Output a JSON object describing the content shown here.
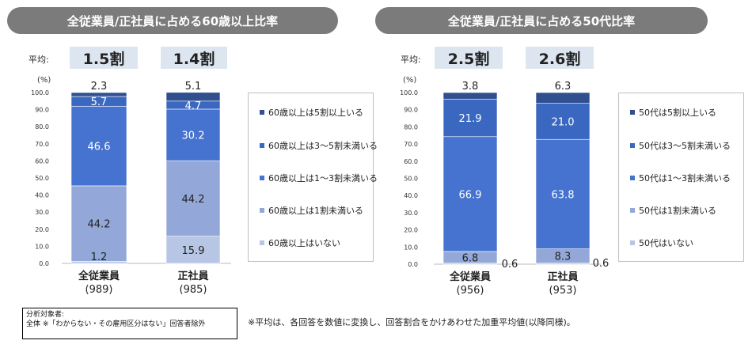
{
  "average_label": "平均:",
  "unit_label": "(%)",
  "colors": [
    "#2f4f8f",
    "#3a68c0",
    "#4673cf",
    "#93a8d8",
    "#b8c6e6"
  ],
  "note": {
    "line1": "分析対象者:",
    "line2": "全体 ※「わからない・その雇用区分はない」回答者除外"
  },
  "footnote": "※平均は、各回答を数値に変換し、回答割合をかけあわせた加重平均値(以降同様)。",
  "chart_data": [
    {
      "type": "bar",
      "stacked": true,
      "title": "全従業員/正社員に占める60歳以上比率",
      "categories": [
        "全従業員",
        "正社員"
      ],
      "category_counts": [
        "(989)",
        "(985)"
      ],
      "averages": [
        "1.5割",
        "1.4割"
      ],
      "ylabel": "(%)",
      "ylim": [
        0,
        100
      ],
      "yticks": [
        "0.0",
        "10.0",
        "20.0",
        "30.0",
        "40.0",
        "50.0",
        "60.0",
        "70.0",
        "80.0",
        "90.0",
        "100.0"
      ],
      "series": [
        {
          "name": "60歳以上は5割以上いる",
          "values": [
            2.3,
            5.1
          ]
        },
        {
          "name": "60歳以上は3～5割未満いる",
          "values": [
            5.7,
            4.7
          ]
        },
        {
          "name": "60歳以上は1～3割未満いる",
          "values": [
            46.6,
            30.2
          ]
        },
        {
          "name": "60歳以上は1割未満いる",
          "values": [
            44.2,
            44.2
          ]
        },
        {
          "name": "60歳以上はいない",
          "values": [
            1.2,
            15.9
          ]
        }
      ]
    },
    {
      "type": "bar",
      "stacked": true,
      "title": "全従業員/正社員に占める50代比率",
      "categories": [
        "全従業員",
        "正社員"
      ],
      "category_counts": [
        "(956)",
        "(953)"
      ],
      "averages": [
        "2.5割",
        "2.6割"
      ],
      "ylabel": "(%)",
      "ylim": [
        0,
        100
      ],
      "yticks": [
        "0.0",
        "10.0",
        "20.0",
        "30.0",
        "40.0",
        "50.0",
        "60.0",
        "70.0",
        "80.0",
        "90.0",
        "100.0"
      ],
      "series": [
        {
          "name": "50代は5割以上いる",
          "values": [
            3.8,
            6.3
          ]
        },
        {
          "name": "50代は3～5割未満いる",
          "values": [
            21.9,
            21.0
          ]
        },
        {
          "name": "50代は1～3割未満いる",
          "values": [
            66.9,
            63.8
          ]
        },
        {
          "name": "50代は1割未満いる",
          "values": [
            6.8,
            8.3
          ]
        },
        {
          "name": "50代はいない",
          "values": [
            0.6,
            0.6
          ]
        }
      ]
    }
  ]
}
